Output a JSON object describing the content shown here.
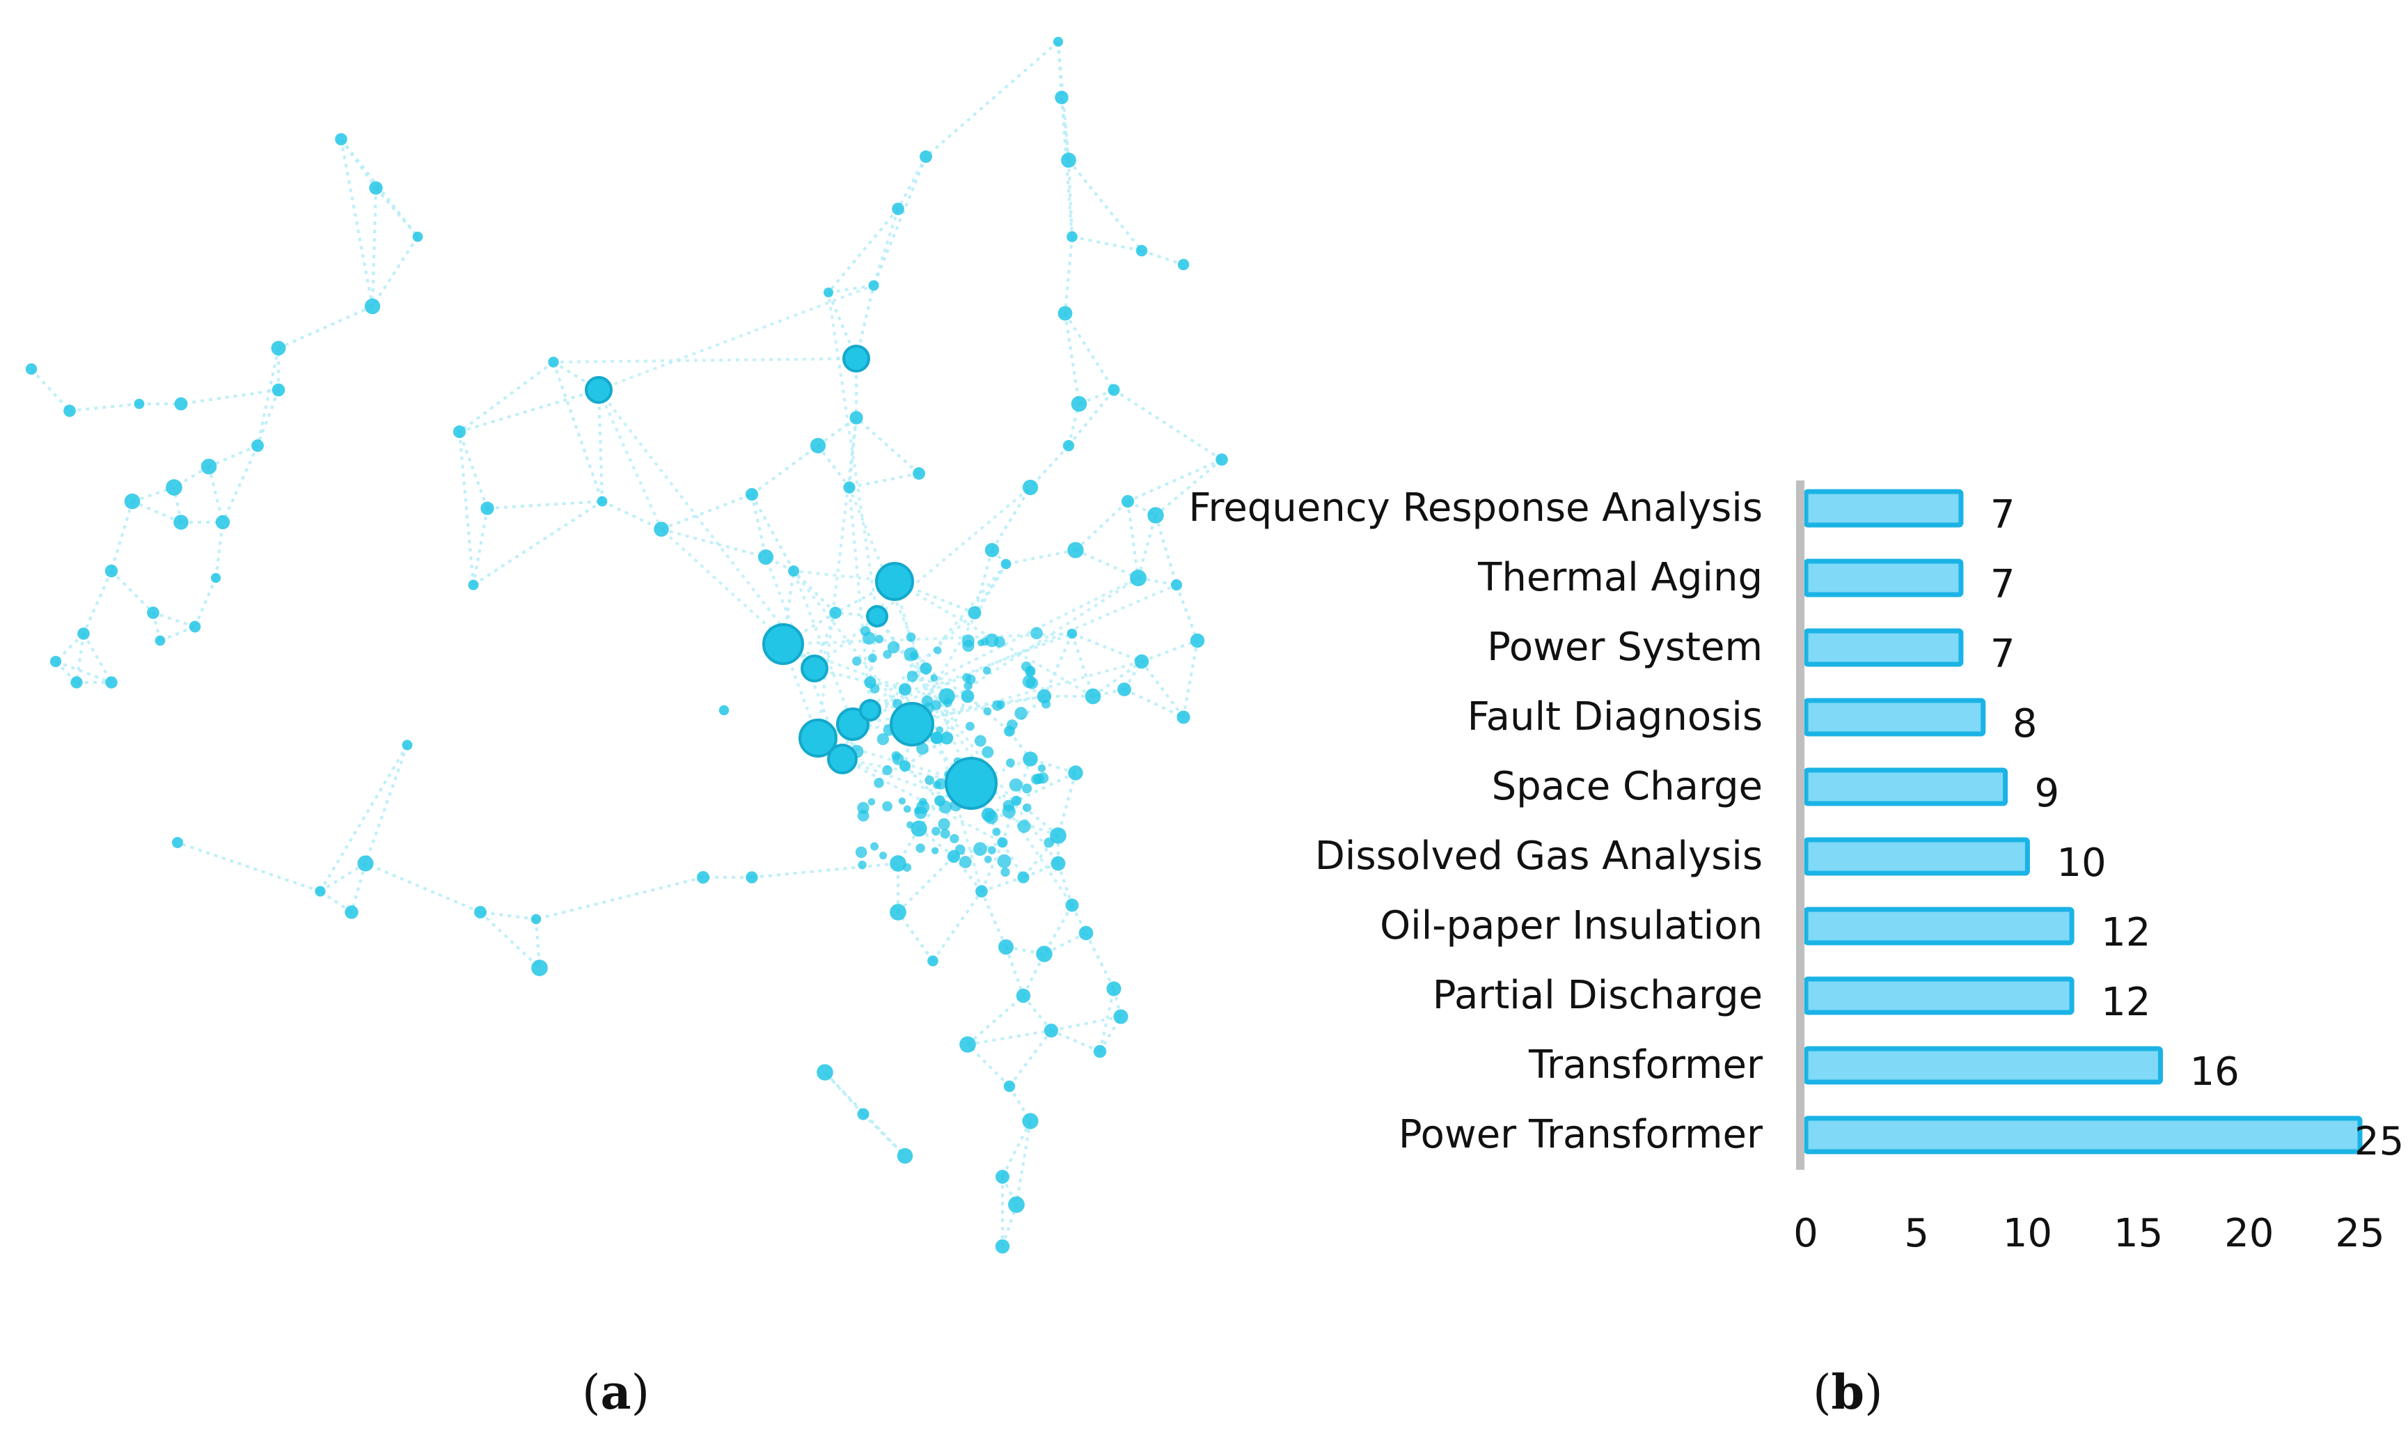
{
  "panels": {
    "a": {
      "label_open": "(",
      "label_letter": "a",
      "label_close": ")"
    },
    "b": {
      "label_open": "(",
      "label_letter": "b",
      "label_close": ")"
    }
  },
  "colors": {
    "bar_fill": "#7fd9f7",
    "bar_edge": "#1bb3e6",
    "node": "#22c5e6",
    "node_dark": "#14a9cc",
    "edge": "#b7eef8",
    "axis": "#bfbfbf"
  },
  "chart_data": [
    {
      "type": "network",
      "title": "",
      "description_note": "keyword co-occurrence network visualization (panel a)"
    },
    {
      "type": "bar",
      "orientation": "horizontal",
      "title": "",
      "xlabel": "",
      "ylabel": "",
      "xlim": [
        0,
        25
      ],
      "xticks": [
        "0",
        "5",
        "10",
        "15",
        "20",
        "25"
      ],
      "categories": [
        "Frequency Response Analysis",
        "Thermal Aging",
        "Power System",
        "Fault Diagnosis",
        "Space Charge",
        "Dissolved Gas Analysis",
        "Oil-paper Insulation",
        "Partial Discharge",
        "Transformer",
        "Power Transformer"
      ],
      "values": [
        7,
        7,
        7,
        8,
        9,
        10,
        12,
        12,
        16,
        25
      ],
      "value_labels": [
        "7",
        "7",
        "7",
        "8",
        "9",
        "10",
        "12",
        "12",
        "16",
        "25"
      ]
    }
  ]
}
